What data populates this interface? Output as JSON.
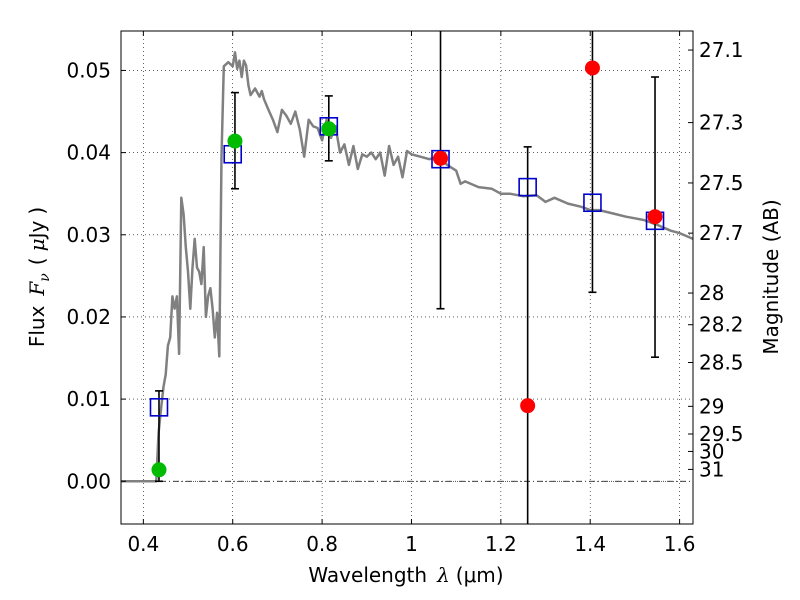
{
  "chart_data": {
    "type": "scatter",
    "xlabel": "Wavelength λ (μm)",
    "ylabel": "Flux F_ν ( μJy )",
    "y2label": "Magnitude (AB)",
    "xlabel_parts": {
      "text": "Wavelength",
      "symbol": "λ",
      "units": "(μm)"
    },
    "ylabel_parts": {
      "text": "Flux",
      "symbol": "F",
      "sub": "ν",
      "open": "(",
      "unit_sym": "μ",
      "unit": "Jy",
      "close": ")"
    },
    "xlim": [
      0.35,
      1.63
    ],
    "ylim": [
      -0.0052,
      0.0548
    ],
    "grid": true,
    "x_ticks": [
      {
        "value": 0.4,
        "label": "0.4"
      },
      {
        "value": 0.6,
        "label": "0.6"
      },
      {
        "value": 0.8,
        "label": "0.8"
      },
      {
        "value": 1.0,
        "label": "1"
      },
      {
        "value": 1.2,
        "label": "1.2"
      },
      {
        "value": 1.4,
        "label": "1.4"
      },
      {
        "value": 1.6,
        "label": "1.6"
      }
    ],
    "y_ticks": [
      {
        "value": 0.0,
        "label": "0.00"
      },
      {
        "value": 0.01,
        "label": "0.01"
      },
      {
        "value": 0.02,
        "label": "0.02"
      },
      {
        "value": 0.03,
        "label": "0.03"
      },
      {
        "value": 0.04,
        "label": "0.04"
      },
      {
        "value": 0.05,
        "label": "0.05"
      }
    ],
    "mag_ticks": [
      {
        "value": 27.1,
        "label": "27.1"
      },
      {
        "value": 27.3,
        "label": "27.3"
      },
      {
        "value": 27.5,
        "label": "27.5"
      },
      {
        "value": 27.7,
        "label": "27.7"
      },
      {
        "value": 28,
        "label": "28"
      },
      {
        "value": 28.2,
        "label": "28.2"
      },
      {
        "value": 28.5,
        "label": "28.5"
      },
      {
        "value": 29,
        "label": "29"
      },
      {
        "value": 29.5,
        "label": "29.5"
      },
      {
        "value": 30,
        "label": "30"
      },
      {
        "value": 31,
        "label": "31"
      }
    ],
    "model_spectrum": {
      "color": "#808080",
      "x": [
        0.35,
        0.429,
        0.434,
        0.44,
        0.445,
        0.45,
        0.455,
        0.46,
        0.465,
        0.47,
        0.475,
        0.48,
        0.485,
        0.49,
        0.495,
        0.5,
        0.505,
        0.51,
        0.515,
        0.52,
        0.525,
        0.53,
        0.535,
        0.54,
        0.545,
        0.55,
        0.555,
        0.56,
        0.565,
        0.57,
        0.575,
        0.58,
        0.59,
        0.6,
        0.605,
        0.61,
        0.615,
        0.62,
        0.625,
        0.63,
        0.635,
        0.64,
        0.65,
        0.66,
        0.665,
        0.67,
        0.68,
        0.69,
        0.7,
        0.71,
        0.72,
        0.73,
        0.74,
        0.75,
        0.76,
        0.77,
        0.78,
        0.79,
        0.8,
        0.81,
        0.82,
        0.83,
        0.84,
        0.85,
        0.86,
        0.87,
        0.88,
        0.89,
        0.9,
        0.91,
        0.92,
        0.93,
        0.94,
        0.95,
        0.96,
        0.97,
        0.98,
        0.99,
        1.0,
        1.02,
        1.04,
        1.06,
        1.08,
        1.1,
        1.11,
        1.12,
        1.15,
        1.18,
        1.2,
        1.22,
        1.25,
        1.28,
        1.3,
        1.32,
        1.35,
        1.38,
        1.4,
        1.42,
        1.45,
        1.48,
        1.5,
        1.52,
        1.55,
        1.58,
        1.6,
        1.63
      ],
      "y": [
        0.0,
        0.0,
        0.0058,
        0.009,
        0.0115,
        0.013,
        0.0165,
        0.0175,
        0.0225,
        0.021,
        0.0225,
        0.0155,
        0.0345,
        0.0325,
        0.0285,
        0.0255,
        0.021,
        0.026,
        0.0295,
        0.026,
        0.0255,
        0.024,
        0.0285,
        0.02,
        0.0225,
        0.0235,
        0.021,
        0.0175,
        0.0205,
        0.0152,
        0.0395,
        0.0505,
        0.051,
        0.0505,
        0.0522,
        0.0502,
        0.0512,
        0.0492,
        0.0512,
        0.0506,
        0.0482,
        0.047,
        0.0478,
        0.0468,
        0.0475,
        0.0465,
        0.0452,
        0.044,
        0.0425,
        0.0452,
        0.0445,
        0.0435,
        0.045,
        0.0428,
        0.0395,
        0.044,
        0.0432,
        0.043,
        0.0415,
        0.044,
        0.0418,
        0.0432,
        0.04,
        0.041,
        0.0385,
        0.0408,
        0.038,
        0.0398,
        0.0395,
        0.04,
        0.0392,
        0.04,
        0.0372,
        0.0408,
        0.0385,
        0.0395,
        0.037,
        0.0402,
        0.0398,
        0.0395,
        0.0392,
        0.0395,
        0.0385,
        0.0378,
        0.0362,
        0.0365,
        0.0358,
        0.0356,
        0.035,
        0.035,
        0.0347,
        0.0348,
        0.034,
        0.0345,
        0.0338,
        0.0334,
        0.033,
        0.033,
        0.0326,
        0.0322,
        0.032,
        0.0318,
        0.0312,
        0.0305,
        0.0302,
        0.0295
      ]
    },
    "series": [
      {
        "marker": "open-square",
        "color": "#0000cc",
        "x": [
          0.435,
          0.6,
          0.815,
          1.065,
          1.26,
          1.405,
          1.545
        ],
        "y": [
          0.009,
          0.0398,
          0.0432,
          0.0392,
          0.0358,
          0.0339,
          0.0317
        ]
      },
      {
        "marker": "filled-circle",
        "color": "#00bb00",
        "x": [
          0.435,
          0.605,
          0.815
        ],
        "y": [
          0.0014,
          0.0414,
          0.0429
        ],
        "yerr_low": [
          0.0,
          0.0356,
          0.039
        ],
        "yerr_high": [
          0.011,
          0.0473,
          0.0469
        ]
      },
      {
        "marker": "filled-circle",
        "color": "#ff0000",
        "x": [
          1.065,
          1.26,
          1.405,
          1.545
        ],
        "y": [
          0.0393,
          0.0092,
          0.0503,
          0.0322
        ],
        "yerr_low": [
          0.021,
          -0.0052,
          0.023,
          0.0151
        ],
        "yerr_high": [
          0.0548,
          0.0407,
          0.0548,
          0.0492
        ]
      }
    ]
  }
}
